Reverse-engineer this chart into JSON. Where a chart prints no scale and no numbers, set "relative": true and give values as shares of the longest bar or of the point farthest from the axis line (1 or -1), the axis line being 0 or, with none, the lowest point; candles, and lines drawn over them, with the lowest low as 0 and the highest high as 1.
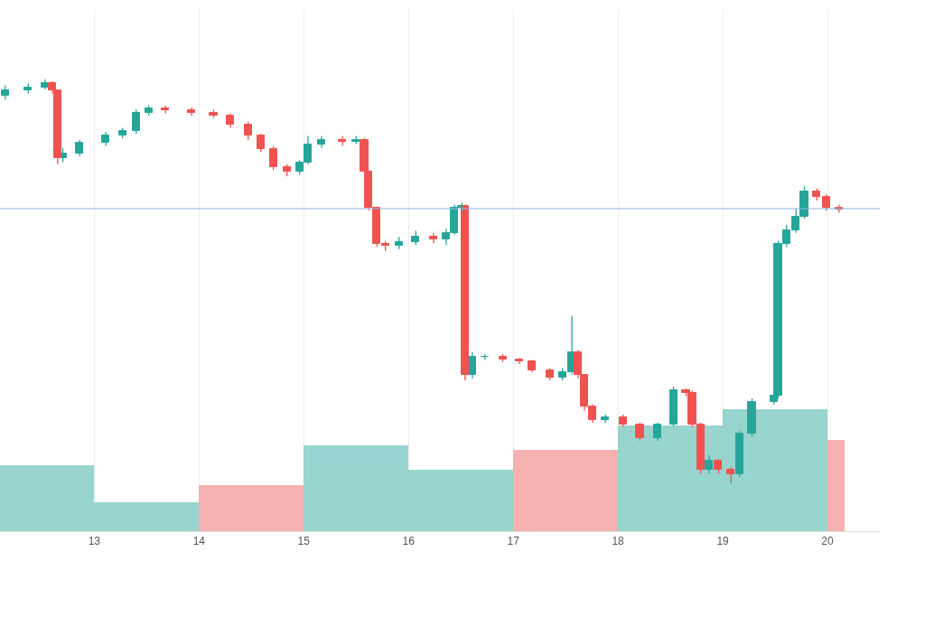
{
  "chart_data": [
    {
      "type": "candlestick",
      "relative": true,
      "tick_labels": false,
      "xlim": [
        12.1,
        20.5
      ],
      "ref_lines": [
        {
          "axis": "y",
          "value": 0.68,
          "color": "#90b4e8",
          "line_style": "solid"
        }
      ],
      "x": [
        12.15,
        12.37,
        12.53,
        12.6,
        12.65,
        12.7,
        12.86,
        13.11,
        13.27,
        13.4,
        13.52,
        13.68,
        13.93,
        14.14,
        14.3,
        14.47,
        14.59,
        14.71,
        14.84,
        14.96,
        15.04,
        15.17,
        15.37,
        15.5,
        15.58,
        15.62,
        15.7,
        15.78,
        15.91,
        16.07,
        16.24,
        16.36,
        16.44,
        16.51,
        16.54,
        16.61,
        16.73,
        16.9,
        17.06,
        17.18,
        17.35,
        17.47,
        17.56,
        17.62,
        17.68,
        17.76,
        17.88,
        18.05,
        18.21,
        18.38,
        18.53,
        18.65,
        18.71,
        18.79,
        18.87,
        18.96,
        19.08,
        19.16,
        19.28,
        19.49,
        19.53,
        19.61,
        19.7,
        19.78,
        19.9,
        19.99,
        20.11
      ],
      "ohlc": [
        [
          0.96,
          0.985,
          0.95,
          0.973
        ],
        [
          0.973,
          0.99,
          0.965,
          0.98
        ],
        [
          0.98,
          1.0,
          0.975,
          0.991
        ],
        [
          0.991,
          0.995,
          0.965,
          0.973
        ],
        [
          0.973,
          0.975,
          0.79,
          0.805
        ],
        [
          0.805,
          0.83,
          0.795,
          0.817
        ],
        [
          0.817,
          0.85,
          0.81,
          0.843
        ],
        [
          0.843,
          0.87,
          0.835,
          0.861
        ],
        [
          0.861,
          0.88,
          0.855,
          0.872
        ],
        [
          0.872,
          0.925,
          0.865,
          0.917
        ],
        [
          0.917,
          0.935,
          0.91,
          0.928
        ],
        [
          0.928,
          0.935,
          0.915,
          0.924
        ],
        [
          0.924,
          0.93,
          0.91,
          0.917
        ],
        [
          0.917,
          0.925,
          0.905,
          0.911
        ],
        [
          0.911,
          0.915,
          0.88,
          0.888
        ],
        [
          0.888,
          0.895,
          0.85,
          0.861
        ],
        [
          0.861,
          0.865,
          0.82,
          0.828
        ],
        [
          0.828,
          0.835,
          0.775,
          0.783
        ],
        [
          0.783,
          0.79,
          0.76,
          0.772
        ],
        [
          0.772,
          0.8,
          0.765,
          0.794
        ],
        [
          0.794,
          0.86,
          0.79,
          0.839
        ],
        [
          0.839,
          0.86,
          0.83,
          0.85
        ],
        [
          0.85,
          0.86,
          0.835,
          0.845
        ],
        [
          0.845,
          0.86,
          0.84,
          0.85
        ],
        [
          0.85,
          0.855,
          0.765,
          0.772
        ],
        [
          0.772,
          0.775,
          0.675,
          0.682
        ],
        [
          0.682,
          0.685,
          0.585,
          0.593
        ],
        [
          0.593,
          0.6,
          0.575,
          0.588
        ],
        [
          0.588,
          0.61,
          0.58,
          0.597
        ],
        [
          0.597,
          0.625,
          0.59,
          0.611
        ],
        [
          0.611,
          0.62,
          0.595,
          0.604
        ],
        [
          0.604,
          0.63,
          0.59,
          0.62
        ],
        [
          0.62,
          0.69,
          0.615,
          0.682
        ],
        [
          0.682,
          0.695,
          0.675,
          0.687
        ],
        [
          0.687,
          0.69,
          0.255,
          0.268
        ],
        [
          0.268,
          0.325,
          0.26,
          0.313
        ],
        [
          0.313,
          0.32,
          0.305,
          0.313
        ],
        [
          0.313,
          0.32,
          0.3,
          0.306
        ],
        [
          0.306,
          0.31,
          0.295,
          0.302
        ],
        [
          0.302,
          0.305,
          0.275,
          0.28
        ],
        [
          0.28,
          0.285,
          0.255,
          0.262
        ],
        [
          0.262,
          0.285,
          0.255,
          0.275
        ],
        [
          0.275,
          0.414,
          0.27,
          0.324
        ],
        [
          0.324,
          0.33,
          0.26,
          0.268
        ],
        [
          0.268,
          0.27,
          0.18,
          0.19
        ],
        [
          0.19,
          0.195,
          0.15,
          0.157
        ],
        [
          0.157,
          0.17,
          0.15,
          0.163
        ],
        [
          0.163,
          0.17,
          0.14,
          0.145
        ],
        [
          0.145,
          0.15,
          0.105,
          0.112
        ],
        [
          0.112,
          0.15,
          0.105,
          0.145
        ],
        [
          0.145,
          0.24,
          0.14,
          0.23
        ],
        [
          0.23,
          0.235,
          0.215,
          0.224
        ],
        [
          0.224,
          0.23,
          0.14,
          0.145
        ],
        [
          0.145,
          0.15,
          0.024,
          0.034
        ],
        [
          0.034,
          0.07,
          0.024,
          0.056
        ],
        [
          0.056,
          0.06,
          0.024,
          0.034
        ],
        [
          0.034,
          0.04,
          0.0,
          0.022
        ],
        [
          0.022,
          0.13,
          0.015,
          0.123
        ],
        [
          0.123,
          0.21,
          0.115,
          0.201
        ],
        [
          0.201,
          0.225,
          0.195,
          0.217
        ],
        [
          0.217,
          0.6,
          0.21,
          0.593
        ],
        [
          0.593,
          0.64,
          0.585,
          0.626
        ],
        [
          0.626,
          0.68,
          0.62,
          0.66
        ],
        [
          0.66,
          0.735,
          0.655,
          0.723
        ],
        [
          0.723,
          0.73,
          0.7,
          0.709
        ],
        [
          0.709,
          0.715,
          0.675,
          0.682
        ],
        [
          0.682,
          0.69,
          0.67,
          0.678
        ]
      ]
    },
    {
      "type": "bar",
      "relative": true,
      "grid": "x",
      "tick_labels": "x",
      "xlim": [
        12.1,
        20.5
      ],
      "xticks": [
        13,
        14,
        15,
        16,
        17,
        18,
        19,
        20
      ],
      "x": [
        12.5,
        13.5,
        14.5,
        15.5,
        16.5,
        17.5,
        18.5,
        19.5,
        20.08
      ],
      "values": [
        0.54,
        0.24,
        0.38,
        0.7,
        0.5,
        0.67,
        0.87,
        1.0,
        0.75
      ],
      "colors": [
        "#7fcbc4",
        "#7fcbc4",
        "#f4a09e",
        "#7fcbc4",
        "#7fcbc4",
        "#f4a09e",
        "#7fcbc4",
        "#7fcbc4",
        "#f4a09e"
      ]
    }
  ]
}
